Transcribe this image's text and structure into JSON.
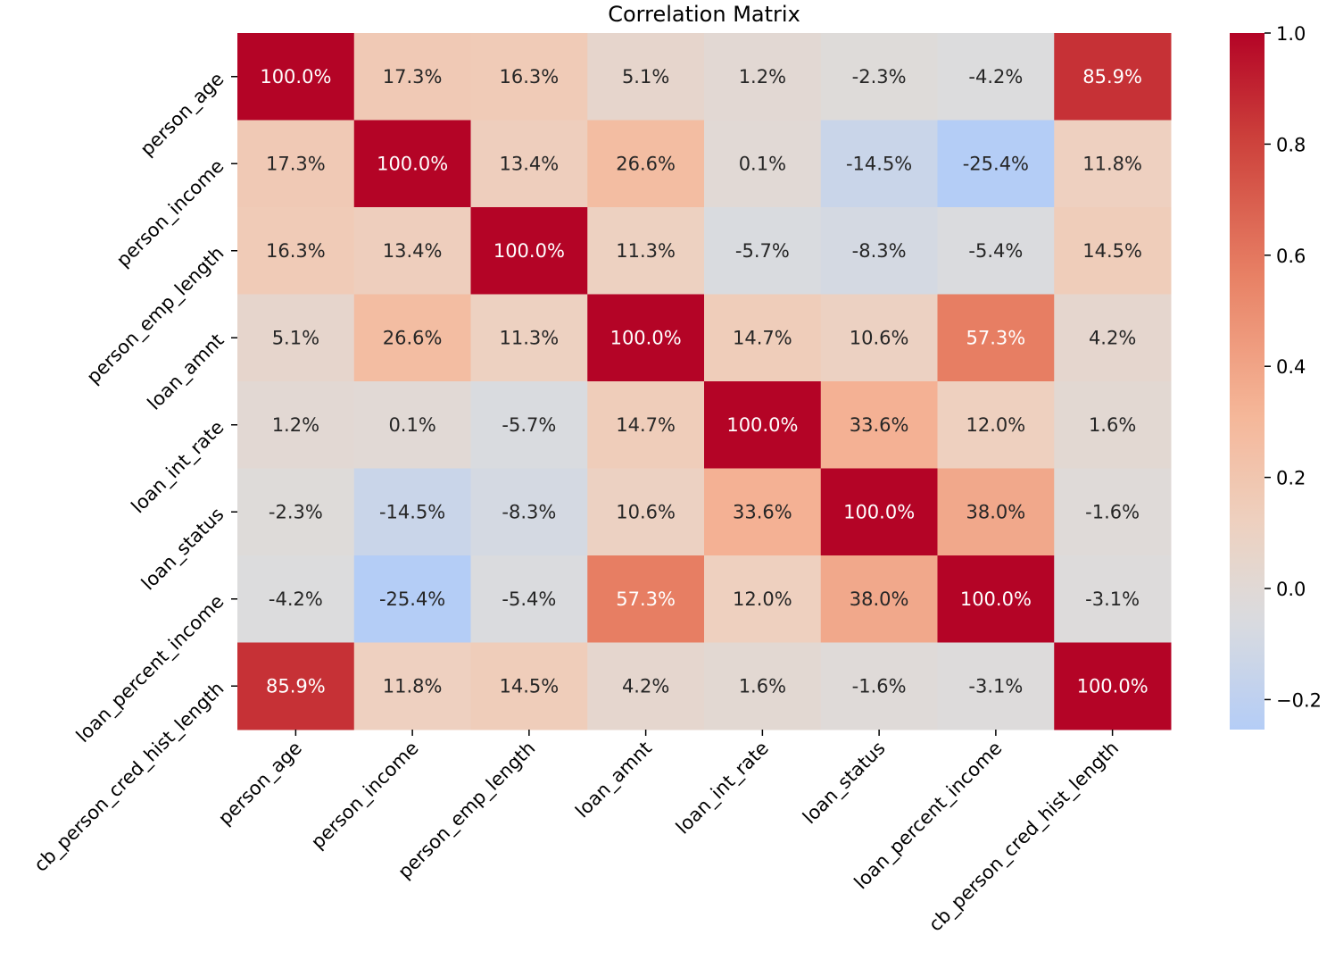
{
  "chart_data": {
    "type": "heatmap",
    "title": "Correlation Matrix",
    "xlabel": "",
    "ylabel": "",
    "value_format": "percent_1dp",
    "colormap": "coolwarm",
    "colormap_center": 0,
    "color_range": [
      -0.254,
      1.0
    ],
    "rows": [
      "person_age",
      "person_income",
      "person_emp_length",
      "loan_amnt",
      "loan_int_rate",
      "loan_status",
      "loan_percent_income",
      "cb_person_cred_hist_length"
    ],
    "columns": [
      "person_age",
      "person_income",
      "person_emp_length",
      "loan_amnt",
      "loan_int_rate",
      "loan_status",
      "loan_percent_income",
      "cb_person_cred_hist_length"
    ],
    "values": [
      [
        1.0,
        0.173,
        0.163,
        0.051,
        0.012,
        -0.023,
        -0.042,
        0.859
      ],
      [
        0.173,
        1.0,
        0.134,
        0.266,
        0.001,
        -0.145,
        -0.254,
        0.118
      ],
      [
        0.163,
        0.134,
        1.0,
        0.113,
        -0.057,
        -0.083,
        -0.054,
        0.145
      ],
      [
        0.051,
        0.266,
        0.113,
        1.0,
        0.147,
        0.106,
        0.573,
        0.042
      ],
      [
        0.012,
        0.001,
        -0.057,
        0.147,
        1.0,
        0.336,
        0.12,
        0.016
      ],
      [
        -0.023,
        -0.145,
        -0.083,
        0.106,
        0.336,
        1.0,
        0.38,
        -0.016
      ],
      [
        -0.042,
        -0.254,
        -0.054,
        0.573,
        0.12,
        0.38,
        1.0,
        -0.031
      ],
      [
        0.859,
        0.118,
        0.145,
        0.042,
        0.016,
        -0.016,
        -0.031,
        1.0
      ]
    ],
    "colorbar": {
      "ticks": [
        1.0,
        0.8,
        0.6,
        0.4,
        0.2,
        0.0,
        -0.2
      ],
      "tick_labels": [
        "1.0",
        "0.8",
        "0.6",
        "0.4",
        "0.2",
        "0.0",
        "−0.2"
      ]
    }
  },
  "colors": {
    "cold": "#b4cdf6",
    "neutral": "#dcdcdd",
    "hot": "#b40426",
    "text_dark": "#262626",
    "text_light": "#ffffff"
  }
}
